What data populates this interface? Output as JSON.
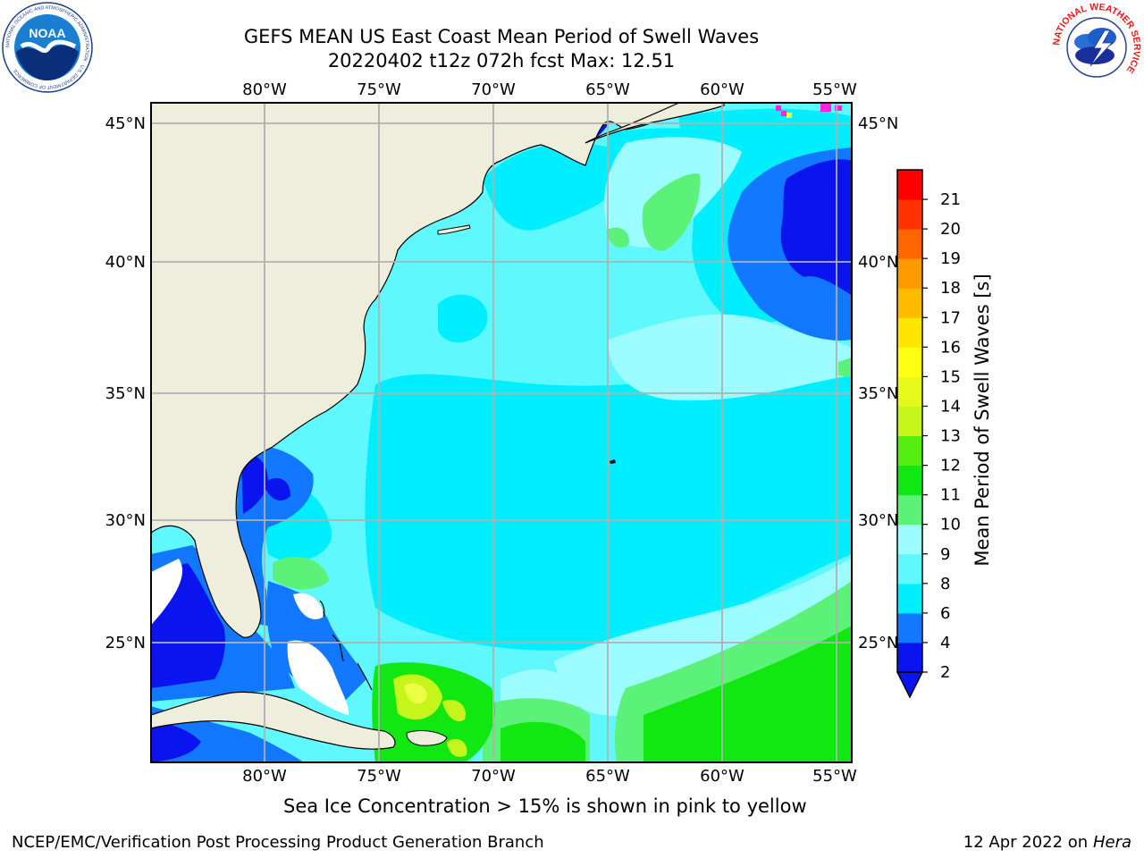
{
  "title": {
    "line1": "GEFS MEAN US East Coast Mean Period of Swell Waves",
    "line2": "20220402 t12z 072h fcst   Max: 12.51"
  },
  "map": {
    "lon_labels": [
      "80°W",
      "75°W",
      "70°W",
      "65°W",
      "60°W",
      "55°W"
    ],
    "lat_labels": [
      "45°N",
      "40°N",
      "35°N",
      "30°N",
      "25°N"
    ],
    "colors": {
      "land": "#efeedc",
      "lt_cyan": "#5ff8ff",
      "cyan": "#00eeff",
      "pale_cyan": "#9cfcff",
      "blue": "#1178ff",
      "dark_blue": "#0a14ee",
      "lt_green": "#5cf27a",
      "green": "#11e811",
      "yellow_green": "#c6f51c",
      "yellow": "#eaff43",
      "pink": "#ff22dd",
      "grid": "#b0b0b0"
    }
  },
  "colorbar": {
    "label": "Mean Period of Swell Waves [s]",
    "ticks": [
      "2",
      "4",
      "6",
      "8",
      "9",
      "10",
      "11",
      "12",
      "13",
      "14",
      "15",
      "16",
      "17",
      "18",
      "19",
      "20",
      "21"
    ],
    "colors": [
      "#0a14ee",
      "#1178ff",
      "#00eeff",
      "#5ff8ff",
      "#9cfcff",
      "#5cf27a",
      "#11e811",
      "#55ee11",
      "#c6f51c",
      "#e6f81c",
      "#ffff11",
      "#ffe600",
      "#ffbb00",
      "#ff9900",
      "#ff6600",
      "#ff3300",
      "#ff0000"
    ]
  },
  "caption": "Sea Ice Concentration > 15% is shown in pink to yellow",
  "footer": {
    "left": "NCEP/EMC/Verification Post Processing Product Generation Branch",
    "right_text": "12 Apr 2022 on",
    "right_italic": "Hera"
  },
  "logos": {
    "noaa_text": "NOAA",
    "noaa_ring": "NATIONAL OCEANIC AND ATMOSPHERIC ADMINISTRATION · U.S. DEPARTMENT OF COMMERCE",
    "nws_ring": "NATIONAL WEATHER SERVICE"
  }
}
